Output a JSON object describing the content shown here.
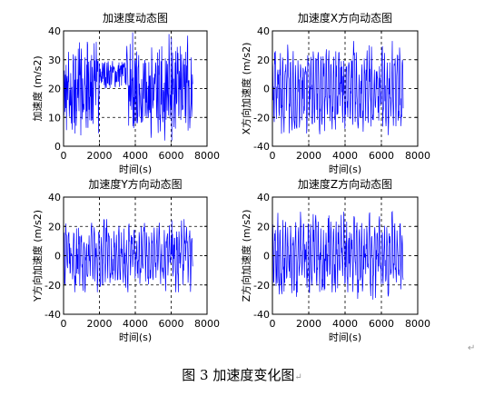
{
  "figure": {
    "caption": "图 3  加速度变化图",
    "caption_mark": "↵",
    "para_mark": "↵"
  },
  "chart_data": [
    {
      "type": "line",
      "title": "加速度动态图",
      "xlabel": "时间(s)",
      "ylabel": "加速度 (m/s2)",
      "xlim": [
        0,
        8000
      ],
      "ylim": [
        0,
        40
      ],
      "xticks": [
        0,
        2000,
        4000,
        6000,
        8000
      ],
      "yticks": [
        0,
        10,
        20,
        30,
        40
      ],
      "grid": "dashed",
      "line_color": "#0000ff",
      "series": [
        {
          "x_range": [
            0,
            7200
          ],
          "points": 360,
          "values_sampled": [
            20,
            36,
            4,
            38,
            10,
            34,
            15,
            37,
            5,
            33,
            12,
            30,
            20,
            28,
            24,
            30,
            27,
            31,
            26,
            29,
            24,
            32,
            20,
            35,
            12,
            36,
            8,
            38,
            6,
            37,
            2,
            39,
            5,
            36,
            10,
            33,
            14,
            30,
            18,
            32
          ],
          "note": "dense oscillation; ~18–32 between t≈2000–3500, wide 0–40 swings elsewhere"
        }
      ]
    },
    {
      "type": "line",
      "title": "加速度X方向动态图",
      "xlabel": "时间(s)",
      "ylabel": "X方向加速度 (m/s2)",
      "xlim": [
        0,
        8000
      ],
      "ylim": [
        -40,
        40
      ],
      "xticks": [
        0,
        2000,
        4000,
        6000,
        8000
      ],
      "yticks": [
        -40,
        -20,
        0,
        20,
        40
      ],
      "grid": "dashed",
      "line_color": "#0000ff",
      "series": [
        {
          "x_range": [
            0,
            7200
          ],
          "points": 360,
          "amplitude": 33,
          "values_sampled": [
            20,
            -25,
            10,
            -30,
            30,
            -15,
            25,
            -20,
            15,
            -28,
            30,
            -10,
            22,
            -25,
            30,
            -20,
            18,
            -32,
            25,
            -15
          ]
        }
      ]
    },
    {
      "type": "line",
      "title": "加速度Y方向动态图",
      "xlabel": "时间(s)",
      "ylabel": "Y方向加速度 (m/s2)",
      "xlim": [
        0,
        8000
      ],
      "ylim": [
        -40,
        40
      ],
      "xticks": [
        0,
        2000,
        4000,
        6000,
        8000
      ],
      "yticks": [
        -40,
        -20,
        0,
        20,
        40
      ],
      "grid": "dashed",
      "line_color": "#0000ff",
      "series": [
        {
          "x_range": [
            0,
            7200
          ],
          "points": 360,
          "amplitude": 25,
          "values_sampled": [
            25,
            -20,
            15,
            -22,
            20,
            -18,
            22,
            -20,
            18,
            -24,
            24,
            -15,
            20,
            -22,
            25,
            -18,
            22,
            -20,
            24,
            -16
          ]
        }
      ]
    },
    {
      "type": "line",
      "title": "加速度Z方向动态图",
      "xlabel": "时间(s)",
      "ylabel": "Z方向加速度 (m/s2)",
      "xlim": [
        0,
        8000
      ],
      "ylim": [
        -40,
        40
      ],
      "xticks": [
        0,
        2000,
        4000,
        6000,
        8000
      ],
      "yticks": [
        -40,
        -20,
        0,
        20,
        40
      ],
      "grid": "dashed",
      "line_color": "#0000ff",
      "series": [
        {
          "x_range": [
            0,
            7200
          ],
          "points": 360,
          "amplitude": 30,
          "values_sampled": [
            18,
            -22,
            20,
            -25,
            25,
            -20,
            28,
            -18,
            22,
            -26,
            30,
            -20,
            25,
            -28,
            28,
            -22,
            30,
            -24,
            26,
            -20
          ]
        }
      ]
    }
  ]
}
